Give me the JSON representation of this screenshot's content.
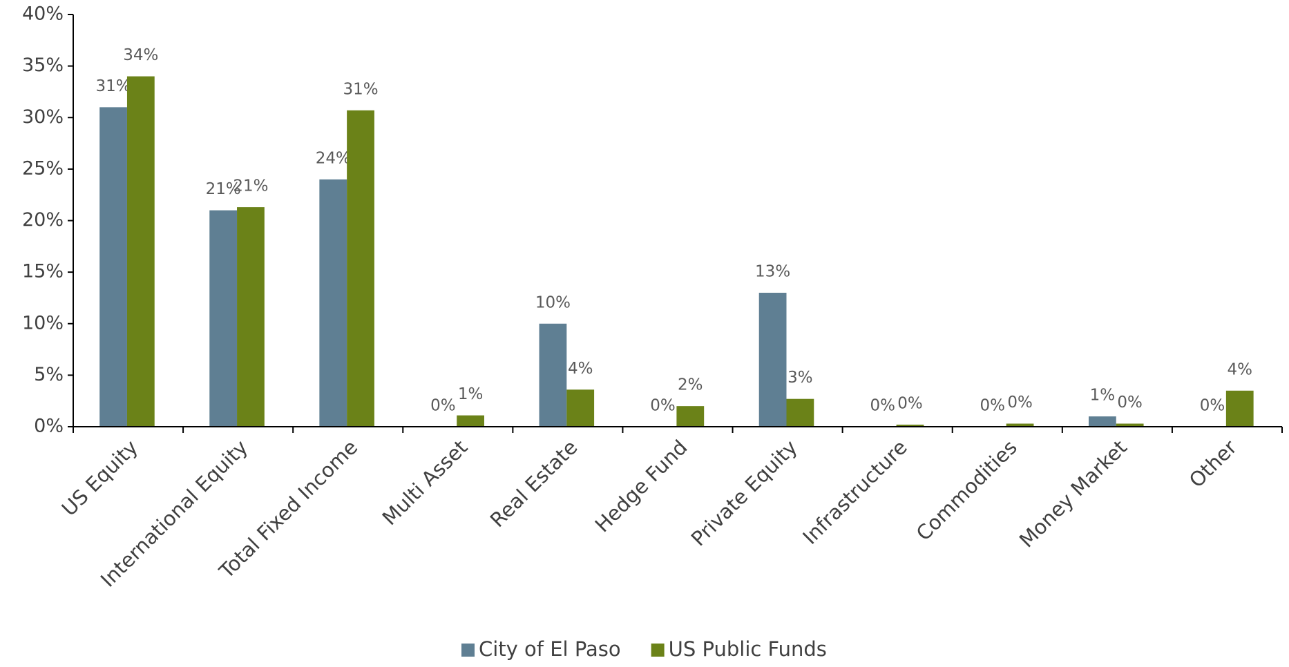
{
  "chart_data": {
    "type": "bar",
    "categories": [
      "US Equity",
      "International Equity",
      "Total Fixed Income",
      "Multi Asset",
      "Real Estate",
      "Hedge Fund",
      "Private Equity",
      "Infrastructure",
      "Commodities",
      "Money Market",
      "Other"
    ],
    "series": [
      {
        "name": "City of El Paso",
        "color": "#5f7f93",
        "values": [
          31,
          21,
          24,
          0,
          10,
          0,
          13,
          0,
          0,
          1,
          0
        ],
        "value_labels": [
          "31%",
          "21%",
          "24%",
          "0%",
          "10%",
          "0%",
          "13%",
          "0%",
          "0%",
          "1%",
          "0%"
        ]
      },
      {
        "name": "US Public Funds",
        "color": "#6b8218",
        "values": [
          34,
          21.3,
          30.7,
          1.1,
          3.6,
          2.0,
          2.7,
          0.2,
          0.3,
          0.3,
          3.5
        ],
        "value_labels": [
          "34%",
          "21%",
          "31%",
          "1%",
          "4%",
          "2%",
          "3%",
          "0%",
          "0%",
          "0%",
          "4%"
        ]
      }
    ],
    "ylim": [
      0,
      40
    ],
    "yticks": [
      {
        "value": 0,
        "label": "0%"
      },
      {
        "value": 5,
        "label": "5%"
      },
      {
        "value": 10,
        "label": "10%"
      },
      {
        "value": 15,
        "label": "15%"
      },
      {
        "value": 20,
        "label": "20%"
      },
      {
        "value": 25,
        "label": "25%"
      },
      {
        "value": 30,
        "label": "30%"
      },
      {
        "value": 35,
        "label": "35%"
      },
      {
        "value": 40,
        "label": "40%"
      }
    ],
    "grid": false,
    "legend": "bottom"
  }
}
